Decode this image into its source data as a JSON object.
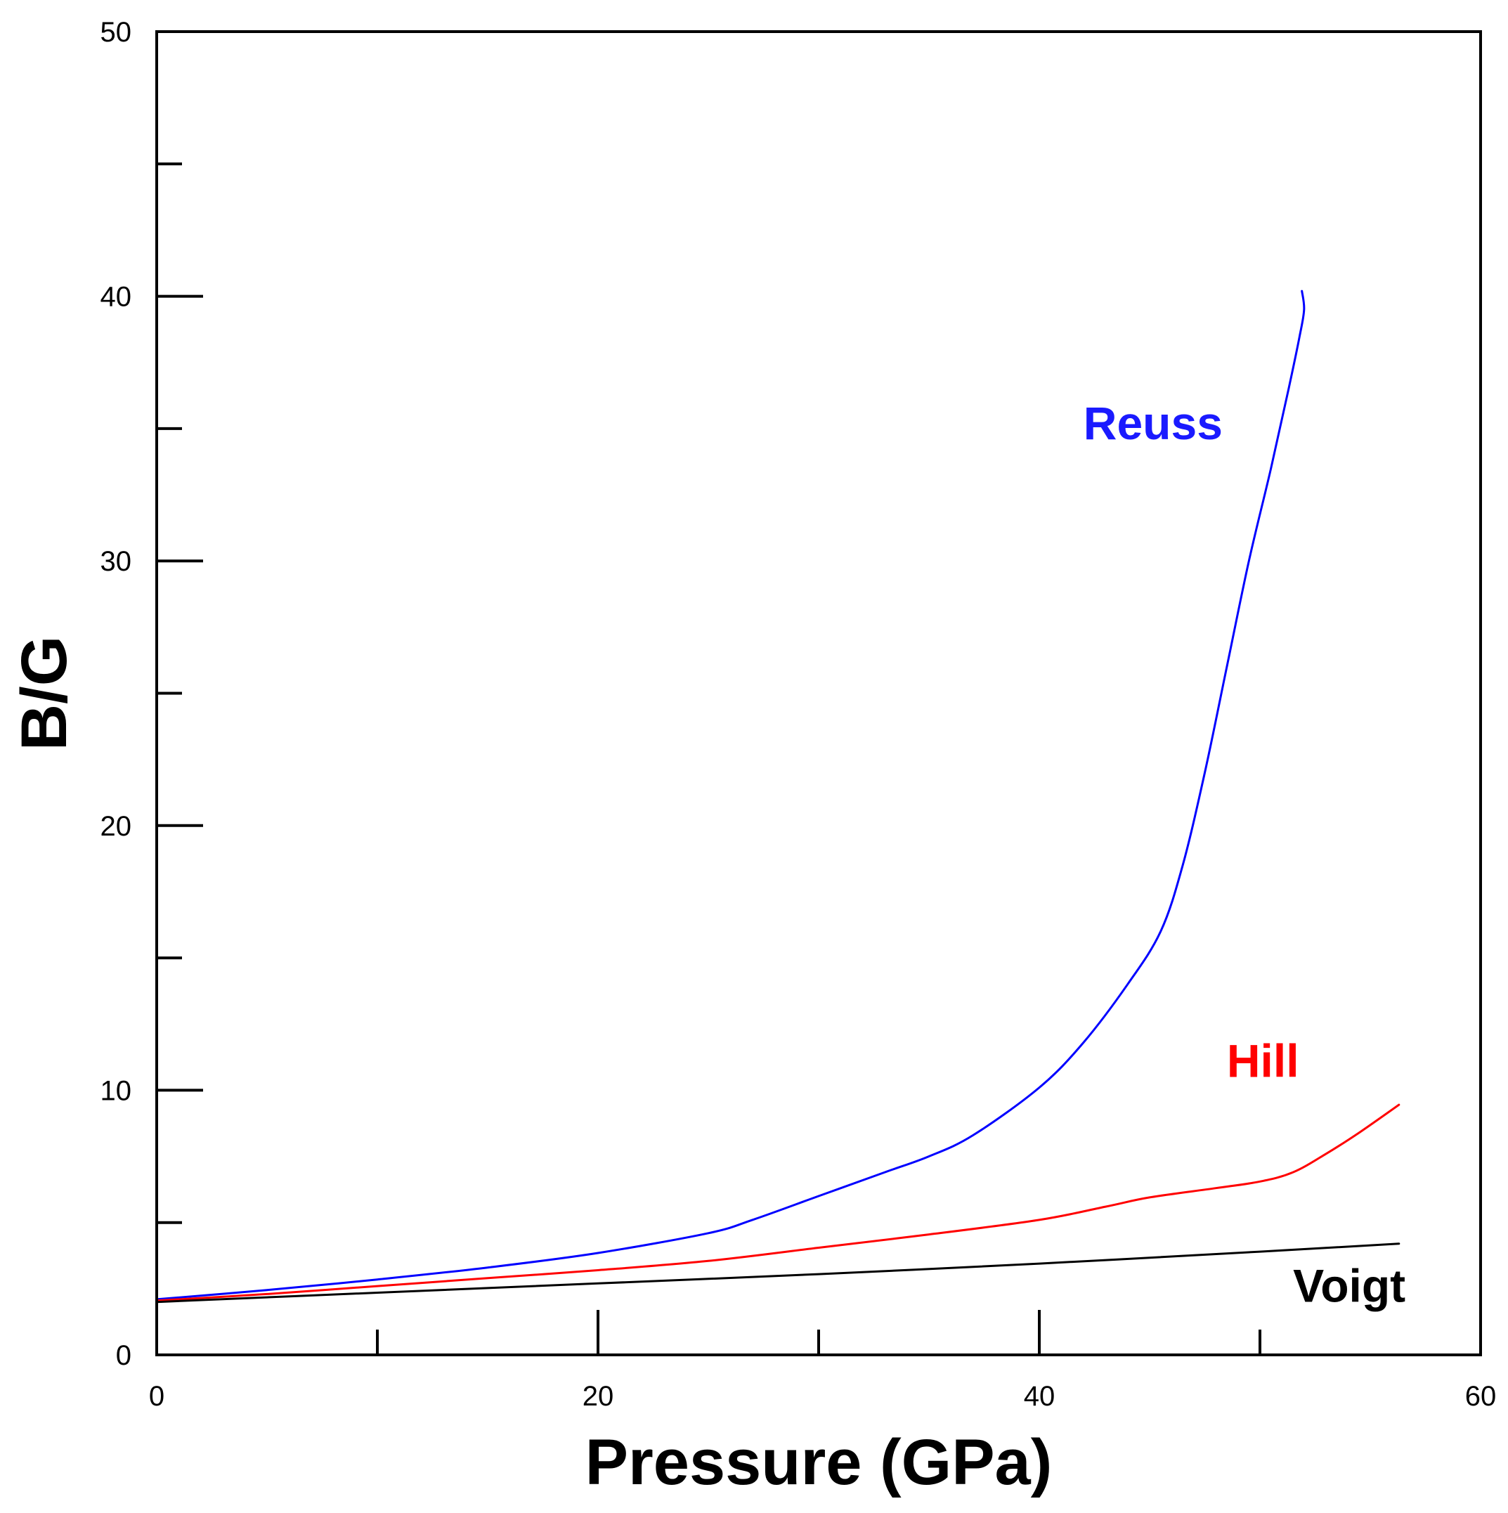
{
  "chart_data": {
    "type": "line",
    "title": "",
    "xlabel": "Pressure (GPa)",
    "ylabel": "B/G",
    "xlim": [
      0,
      60
    ],
    "ylim": [
      0,
      50
    ],
    "x_major_ticks": [
      0,
      20,
      40,
      60
    ],
    "x_tick_labels": [
      "0",
      "20",
      "40",
      "60"
    ],
    "x_minor_ticks": [
      10,
      30,
      50
    ],
    "y_major_ticks": [
      0,
      10,
      20,
      30,
      40,
      50
    ],
    "y_tick_labels": [
      "0",
      "10",
      "20",
      "30",
      "40",
      "50"
    ],
    "y_minor_ticks": [
      5,
      15,
      25,
      35,
      45
    ],
    "grid": false,
    "series": [
      {
        "name": "Reuss",
        "color": "#0000ff",
        "label_color": "#1a1aff",
        "x": [
          0,
          5,
          10,
          15,
          20,
          25,
          27,
          30,
          33,
          35,
          37,
          40,
          42,
          44,
          45.5,
          46.5,
          47.5,
          48.5,
          49.5,
          50.5,
          51.3,
          51.8,
          52.0,
          51.9
        ],
        "y": [
          2.1,
          2.45,
          2.85,
          3.3,
          3.85,
          4.6,
          5.1,
          6.0,
          6.9,
          7.5,
          8.3,
          10.1,
          11.8,
          14.0,
          16.0,
          18.5,
          22.0,
          26.0,
          30.0,
          33.5,
          36.5,
          38.5,
          39.5,
          40.2
        ]
      },
      {
        "name": "Hill",
        "color": "#ff0000",
        "label_color": "#ff0000",
        "x": [
          0,
          5,
          10,
          15,
          20,
          25,
          30,
          35,
          40,
          43,
          45,
          48,
          50,
          51.5,
          53,
          54.5,
          56.3
        ],
        "y": [
          2.05,
          2.3,
          2.6,
          2.9,
          3.2,
          3.55,
          4.05,
          4.55,
          5.1,
          5.6,
          5.95,
          6.3,
          6.55,
          6.9,
          7.6,
          8.4,
          9.45
        ]
      },
      {
        "name": "Voigt",
        "color": "#000000",
        "label_color": "#000000",
        "x": [
          0,
          10,
          20,
          30,
          40,
          50,
          56.3
        ],
        "y": [
          2.0,
          2.35,
          2.7,
          3.05,
          3.45,
          3.9,
          4.2
        ]
      }
    ],
    "annotations": [
      {
        "text": "Reuss",
        "x": 42.0,
        "y": 34.6,
        "color": "#1a1aff"
      },
      {
        "text": "Hill",
        "x": 48.5,
        "y": 10.5,
        "color": "#ff0000"
      },
      {
        "text": "Voigt",
        "x": 51.5,
        "y": 2.0,
        "color": "#000000"
      }
    ]
  }
}
